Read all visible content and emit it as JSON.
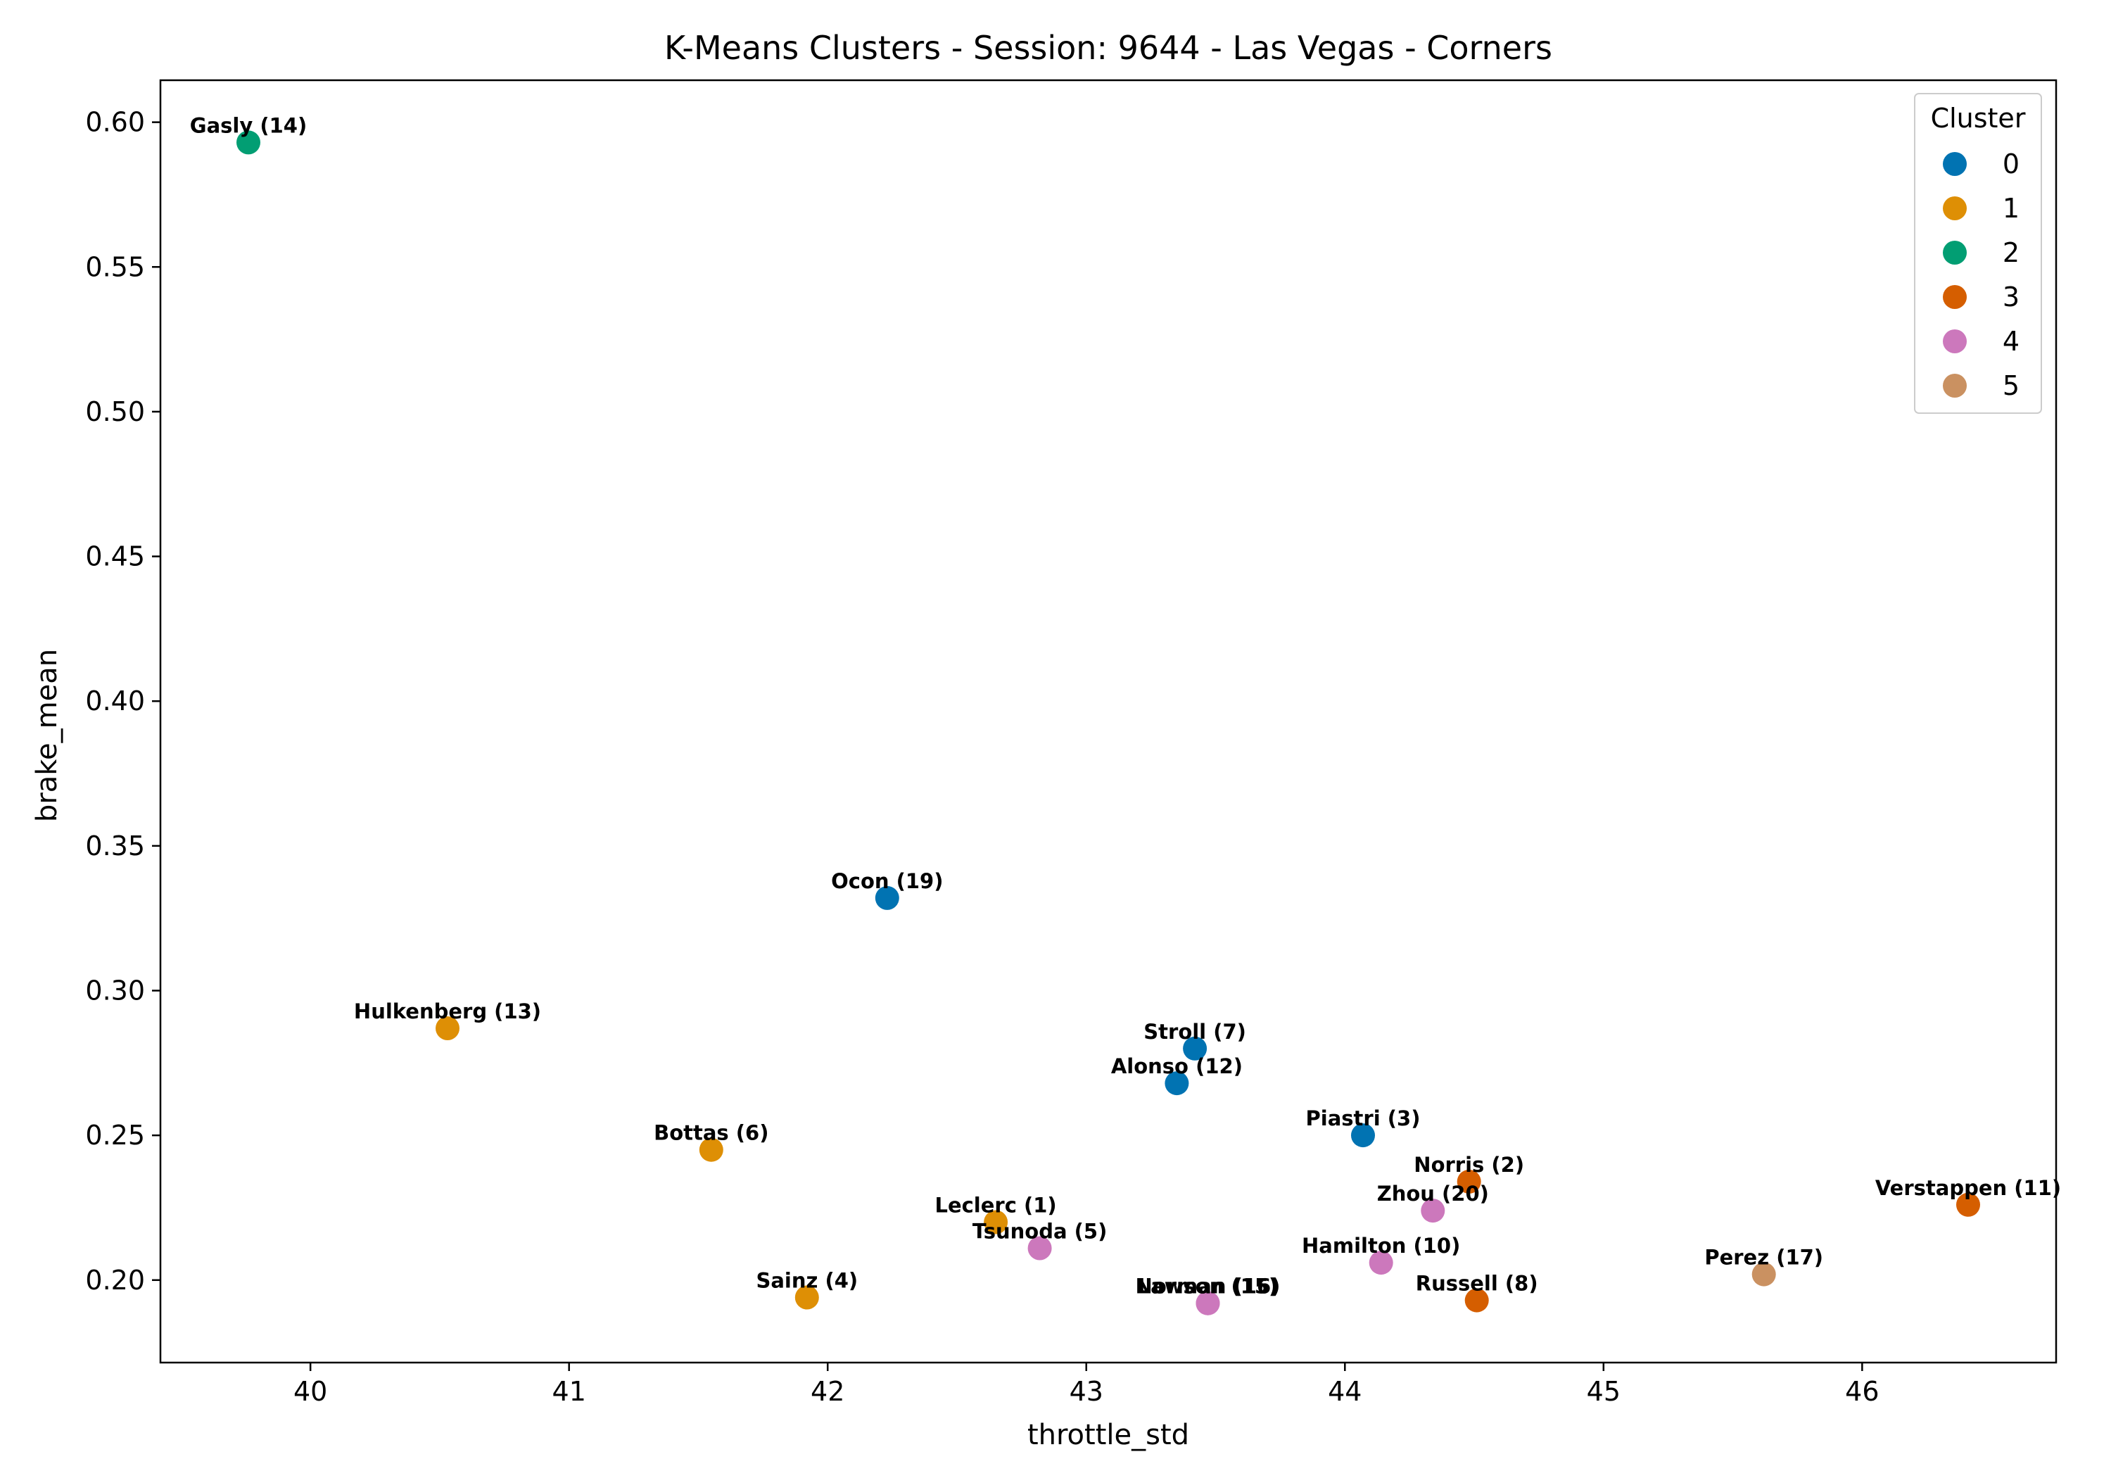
{
  "chart_data": {
    "type": "scatter",
    "title": "K-Means Clusters - Session: 9644 - Las Vegas - Corners",
    "xlabel": "throttle_std",
    "ylabel": "brake_mean",
    "xlim": [
      39.42,
      46.75
    ],
    "ylim": [
      0.1715,
      0.6145
    ],
    "xticks": [
      40,
      41,
      42,
      43,
      44,
      45,
      46
    ],
    "yticks": [
      0.2,
      0.25,
      0.3,
      0.35,
      0.4,
      0.45,
      0.5,
      0.55,
      0.6
    ],
    "ytick_labels": [
      "0.20",
      "0.25",
      "0.30",
      "0.35",
      "0.40",
      "0.45",
      "0.50",
      "0.55",
      "0.60"
    ],
    "grid": false,
    "legend": {
      "title": "Cluster",
      "placement": "top-right",
      "entries": [
        {
          "label": "0",
          "color": "#0173b2"
        },
        {
          "label": "1",
          "color": "#de8f05"
        },
        {
          "label": "2",
          "color": "#029e73"
        },
        {
          "label": "3",
          "color": "#d55e00"
        },
        {
          "label": "4",
          "color": "#cc78bc"
        },
        {
          "label": "5",
          "color": "#ca9161"
        }
      ]
    },
    "points": [
      {
        "label": "Gasly (14)",
        "x": 39.76,
        "y": 0.593,
        "cluster": 2
      },
      {
        "label": "Ocon (19)",
        "x": 42.23,
        "y": 0.332,
        "cluster": 0
      },
      {
        "label": "Hulkenberg (13)",
        "x": 40.53,
        "y": 0.287,
        "cluster": 1
      },
      {
        "label": "Stroll (7)",
        "x": 43.42,
        "y": 0.28,
        "cluster": 0
      },
      {
        "label": "Alonso (12)",
        "x": 43.35,
        "y": 0.268,
        "cluster": 0
      },
      {
        "label": "Piastri (3)",
        "x": 44.07,
        "y": 0.25,
        "cluster": 0
      },
      {
        "label": "Bottas (6)",
        "x": 41.55,
        "y": 0.245,
        "cluster": 1
      },
      {
        "label": "Norris (2)",
        "x": 44.48,
        "y": 0.234,
        "cluster": 3
      },
      {
        "label": "Zhou (20)",
        "x": 44.34,
        "y": 0.224,
        "cluster": 4
      },
      {
        "label": "Verstappen (11)",
        "x": 46.41,
        "y": 0.226,
        "cluster": 3
      },
      {
        "label": "Leclerc (1)",
        "x": 42.65,
        "y": 0.22,
        "cluster": 1
      },
      {
        "label": "Tsunoda (5)",
        "x": 42.82,
        "y": 0.211,
        "cluster": 4
      },
      {
        "label": "Hamilton (10)",
        "x": 44.14,
        "y": 0.206,
        "cluster": 4
      },
      {
        "label": "Perez (17)",
        "x": 45.62,
        "y": 0.202,
        "cluster": 5
      },
      {
        "label": "Sainz (4)",
        "x": 41.92,
        "y": 0.194,
        "cluster": 1
      },
      {
        "label": "Russell (8)",
        "x": 44.51,
        "y": 0.193,
        "cluster": 3
      },
      {
        "label": "Lawson (15)",
        "x": 43.47,
        "y": 0.192,
        "cluster": 4
      },
      {
        "label": "Norman (16)",
        "x": 43.47,
        "y": 0.192,
        "cluster": 4
      }
    ]
  }
}
